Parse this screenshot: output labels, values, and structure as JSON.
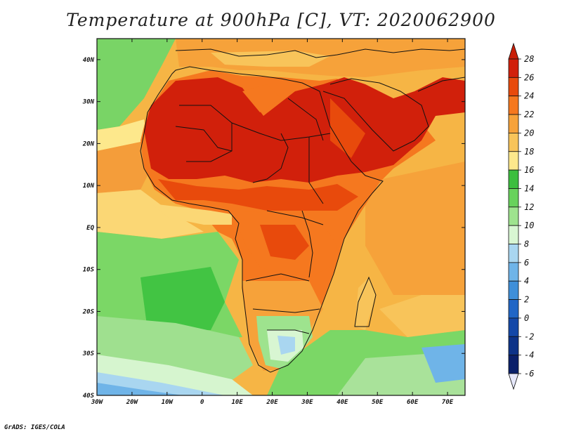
{
  "title": "Temperature at 900hPa [C], VT: 2020062900",
  "credit": "GrADS: IGES/COLA",
  "map": {
    "lon_range": [
      -30,
      75
    ],
    "lat_range": [
      -40,
      45
    ],
    "x_ticks": [
      "30W",
      "20W",
      "10W",
      "0",
      "10E",
      "20E",
      "30E",
      "40E",
      "50E",
      "60E",
      "70E"
    ],
    "y_ticks": [
      "40S",
      "30S",
      "20S",
      "10S",
      "EQ",
      "10N",
      "20N",
      "30N",
      "40N"
    ],
    "background_color": "#f4c452"
  },
  "colorbar": {
    "levels": [
      {
        "value": "28",
        "color": "#d1200b"
      },
      {
        "value": "26",
        "color": "#e84a0c"
      },
      {
        "value": "24",
        "color": "#f5781f"
      },
      {
        "value": "22",
        "color": "#f6a23a"
      },
      {
        "value": "20",
        "color": "#f8c45a"
      },
      {
        "value": "18",
        "color": "#fde88c"
      },
      {
        "value": "16",
        "color": "#3cbe3e"
      },
      {
        "value": "14",
        "color": "#68d25c"
      },
      {
        "value": "12",
        "color": "#9ee38e"
      },
      {
        "value": "10",
        "color": "#d8f6d2"
      },
      {
        "value": "8",
        "color": "#a9d6f0"
      },
      {
        "value": "6",
        "color": "#6fb4e8"
      },
      {
        "value": "4",
        "color": "#3f8fd9"
      },
      {
        "value": "2",
        "color": "#2166c6"
      },
      {
        "value": "0",
        "color": "#1448a8"
      },
      {
        "value": "-2",
        "color": "#0d3388"
      },
      {
        "value": "-4",
        "color": "#0a206a"
      },
      {
        "value": "-6",
        "color": "#0a1450"
      }
    ],
    "top_color": "#c81e08",
    "bottom_color": "#e6e8fb"
  }
}
